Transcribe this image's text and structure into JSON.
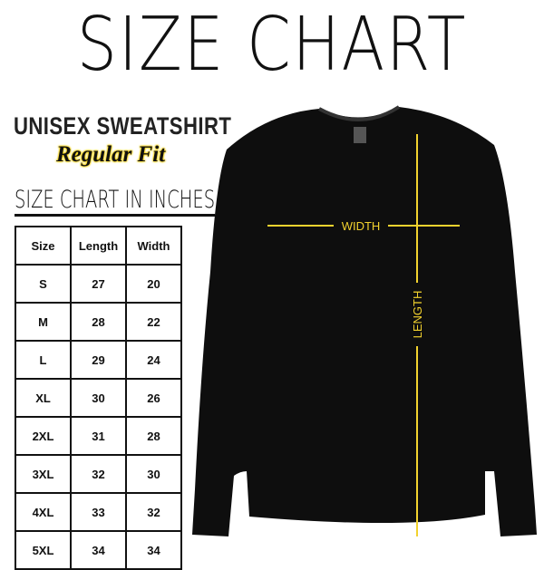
{
  "title": "SIZE CHART",
  "product": "UNISEX SWEATSHIRT",
  "fit": "Regular Fit",
  "chart_heading": "SIZE CHART IN INCHES",
  "table": {
    "headers": [
      "Size",
      "Length",
      "Width"
    ],
    "rows": [
      [
        "S",
        "27",
        "20"
      ],
      [
        "M",
        "28",
        "22"
      ],
      [
        "L",
        "29",
        "24"
      ],
      [
        "XL",
        "30",
        "26"
      ],
      [
        "2XL",
        "31",
        "28"
      ],
      [
        "3XL",
        "32",
        "30"
      ],
      [
        "4XL",
        "33",
        "32"
      ],
      [
        "5XL",
        "34",
        "34"
      ]
    ]
  },
  "labels": {
    "width": "WIDTH",
    "length": "LENGTH"
  },
  "colors": {
    "garment": "#0e0e0e",
    "measure_line": "#f2d22e"
  }
}
